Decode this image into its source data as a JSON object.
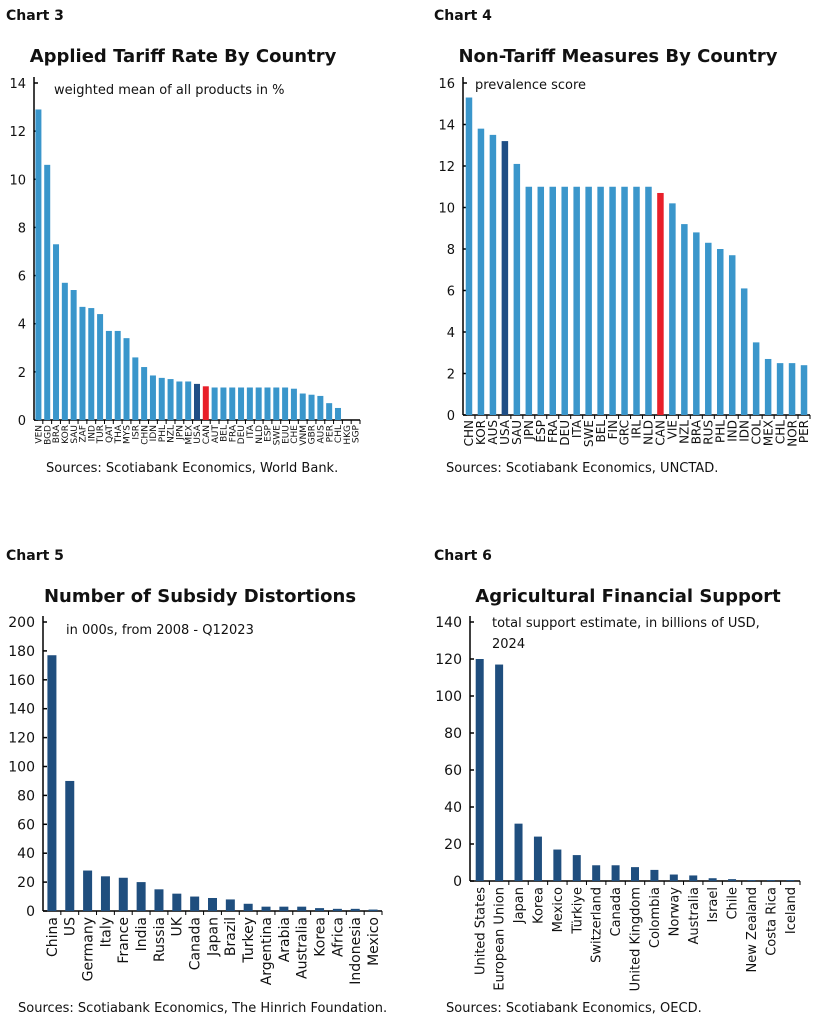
{
  "chart_data": [
    {
      "chart_label": "Chart 3",
      "type": "bar",
      "title": "Applied Tariff Rate By Country",
      "subtitle": "weighted mean of all products in %",
      "source": "Sources: Scotiabank Economics, World Bank.",
      "ylim": [
        0,
        14
      ],
      "yticks": [
        0,
        2,
        4,
        6,
        8,
        10,
        12,
        14
      ],
      "categories": [
        "VEN",
        "BGD",
        "BRA",
        "KOR",
        "SAU",
        "ZAF",
        "IND",
        "TUR",
        "QAT",
        "THA",
        "MYS",
        "ISR",
        "CHN",
        "IDN",
        "PHL",
        "NZL",
        "JPN",
        "MEX",
        "USA",
        "CAN",
        "AUT",
        "BEL",
        "FRA",
        "DEU",
        "ITA",
        "NLD",
        "ESP",
        "SWE",
        "EUU",
        "CHE",
        "VNM",
        "GBR",
        "AUS",
        "PER",
        "CHL",
        "HKG",
        "SGP"
      ],
      "values": [
        12.9,
        10.6,
        7.3,
        5.7,
        5.4,
        4.7,
        4.65,
        4.4,
        3.7,
        3.7,
        3.4,
        2.6,
        2.2,
        1.85,
        1.75,
        1.7,
        1.6,
        1.6,
        1.5,
        1.4,
        1.35,
        1.35,
        1.35,
        1.35,
        1.35,
        1.35,
        1.35,
        1.35,
        1.35,
        1.3,
        1.1,
        1.05,
        1.0,
        0.7,
        0.5,
        0,
        0
      ],
      "highlight": {
        "USA": "#1F4E85",
        "CAN": "#E8202A"
      },
      "bar_color": "#3A96CB",
      "grid": false
    },
    {
      "chart_label": "Chart 4",
      "type": "bar",
      "title": "Non-Tariff Measures By Country",
      "subtitle": "prevalence score",
      "source": "Sources: Scotiabank Economics, UNCTAD.",
      "ylim": [
        0,
        16
      ],
      "yticks": [
        0,
        2,
        4,
        6,
        8,
        10,
        12,
        14,
        16
      ],
      "categories": [
        "CHN",
        "KOR",
        "AUS",
        "USA",
        "SAU",
        "JPN",
        "ESP",
        "FRA",
        "DEU",
        "ITA",
        "SWE",
        "BEL",
        "FIN",
        "GRC",
        "IRL",
        "NLD",
        "CAN",
        "VIE",
        "NZL",
        "BRA",
        "RUS",
        "PHL",
        "IND",
        "IDN",
        "COL",
        "MEX",
        "CHL",
        "NOR",
        "PER"
      ],
      "values": [
        15.3,
        13.8,
        13.5,
        13.2,
        12.1,
        11,
        11,
        11,
        11,
        11,
        11,
        11,
        11,
        11,
        11,
        11,
        10.7,
        10.2,
        9.2,
        8.8,
        8.3,
        8.0,
        7.7,
        6.1,
        3.5,
        2.7,
        2.5,
        2.5,
        2.4
      ],
      "highlight": {
        "USA": "#1F4E85",
        "CAN": "#E8202A"
      },
      "bar_color": "#3A96CB",
      "grid": false
    },
    {
      "chart_label": "Chart 5",
      "type": "bar",
      "title": "Number of Subsidy Distortions",
      "subtitle": "in 000s,  from 2008 - Q12023",
      "source": "Sources: Scotiabank Economics, The Hinrich Foundation.",
      "ylim": [
        0,
        200
      ],
      "yticks": [
        0,
        20,
        40,
        60,
        80,
        100,
        120,
        140,
        160,
        180,
        200
      ],
      "categories": [
        "China",
        "US",
        "Germany",
        "Italy",
        "France",
        "India",
        "Russia",
        "UK",
        "Canada",
        "Japan",
        "Brazil",
        "Turkey",
        "Argentina",
        "Arabia",
        "Australia",
        "Korea",
        "Africa",
        "Indonesia",
        "Mexico"
      ],
      "values": [
        177,
        90,
        28,
        24,
        23,
        20,
        15,
        12,
        10,
        9,
        8,
        5,
        3,
        3,
        3,
        2,
        1.5,
        1.5,
        1
      ],
      "bar_color": "#1F4E7E",
      "grid": false
    },
    {
      "chart_label": "Chart 6",
      "type": "bar",
      "title": "Agricultural Financial Support",
      "subtitle": "total support estimate, in billions of USD,",
      "subtitle2": "2024",
      "source": "Sources: Scotiabank Economics, OECD.",
      "ylim": [
        0,
        140
      ],
      "yticks": [
        0,
        20,
        40,
        60,
        80,
        100,
        120,
        140
      ],
      "categories": [
        "United States",
        "European Union",
        "Japan",
        "Korea",
        "Mexico",
        "Türkiye",
        "Switzerland",
        "Canada",
        "United Kingdom",
        "Colombia",
        "Norway",
        "Australia",
        "Israel",
        "Chile",
        "New Zealand",
        "Costa Rica",
        "Iceland"
      ],
      "values": [
        120,
        117,
        31,
        24,
        17,
        14,
        8.5,
        8.5,
        7.5,
        6,
        3.5,
        3,
        1.5,
        1,
        0.5,
        0.5,
        0.5
      ],
      "bar_color": "#1F4E7E",
      "grid": false
    }
  ]
}
